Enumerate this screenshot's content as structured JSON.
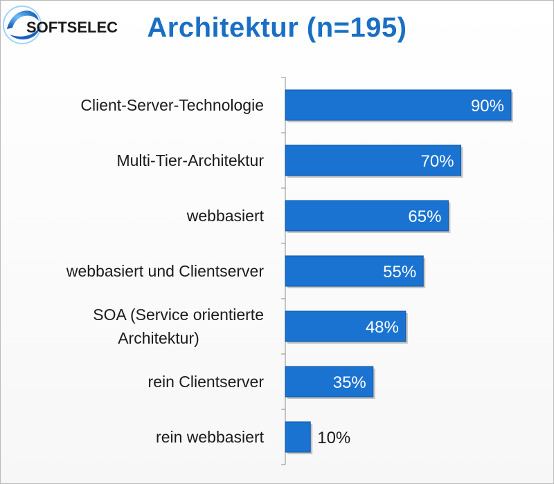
{
  "chart_data": {
    "type": "bar",
    "orientation": "horizontal",
    "title": "Architektur (n=195)",
    "categories": [
      [
        "Client-Server-Technologie"
      ],
      [
        "Multi-Tier-Architektur"
      ],
      [
        "webbasiert"
      ],
      [
        "webbasiert und Clientserver"
      ],
      [
        "SOA (Service orientierte",
        "Architektur)"
      ],
      [
        "rein Clientserver"
      ],
      [
        "rein webbasiert"
      ]
    ],
    "values": [
      90,
      70,
      65,
      55,
      48,
      35,
      10
    ],
    "value_labels": [
      "90%",
      "70%",
      "65%",
      "55%",
      "48%",
      "35%",
      "10%"
    ],
    "xlim": [
      0,
      100
    ],
    "grid": false,
    "bar_color": "#1a73d1",
    "value_label_inside_color": "#ffffff",
    "value_label_outside_color": "#1a1a1a"
  },
  "title_color": "#1a6fc4",
  "logo": {
    "text": "SOFTSELECT",
    "icon": "softselect-swirl-logo"
  }
}
